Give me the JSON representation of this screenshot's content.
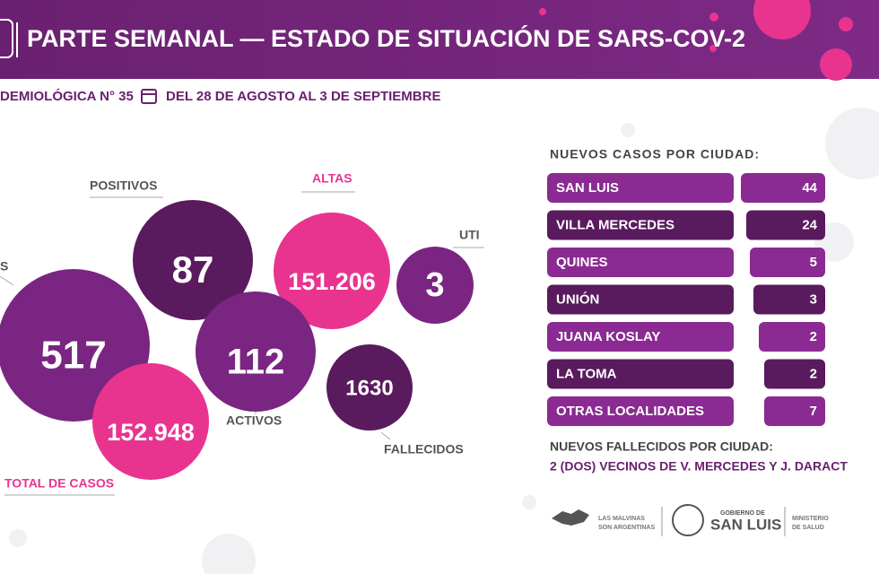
{
  "header": {
    "title": "PARTE SEMANAL — ESTADO DE SITUACIÓN DE SARS-COV-2",
    "report": "DEMIOLÓGICA N° 35",
    "dates": "DEL 28 DE AGOSTO AL 3 DE SEPTIEMBRE"
  },
  "bubbles": [
    {
      "label": "S",
      "value": "517"
    },
    {
      "label": "POSITIVOS",
      "value": "87"
    },
    {
      "label": "ALTAS",
      "value": "151.206"
    },
    {
      "label": "UTI",
      "value": "3"
    },
    {
      "label": "ACTIVOS",
      "value": "112"
    },
    {
      "label": "FALLECIDOS",
      "value": "1630"
    },
    {
      "label": "TOTAL DE CASOS",
      "value": "152.948"
    }
  ],
  "cities": {
    "title": "NUEVOS CASOS POR CIUDAD:",
    "rows": [
      {
        "name": "SAN LUIS",
        "value": 44
      },
      {
        "name": "VILLA MERCEDES",
        "value": 24
      },
      {
        "name": "QUINES",
        "value": 5
      },
      {
        "name": "UNIÓN",
        "value": 3
      },
      {
        "name": "JUANA KOSLAY",
        "value": 2
      },
      {
        "name": "LA TOMA",
        "value": 2
      },
      {
        "name": "OTRAS LOCALIDADES",
        "value": 7
      }
    ]
  },
  "deaths": {
    "title": "NUEVOS FALLECIDOS POR CIUDAD:",
    "text": "2 (DOS) VECINOS DE V. MERCEDES Y J. DARACT"
  },
  "footer": {
    "malvinas": [
      "LAS MALVINAS",
      "SON ARGENTINAS"
    ],
    "gobierno": "GOBIERNO DE",
    "provincia": "SAN LUIS",
    "ministerio": [
      "MINISTERIO",
      "DE SALUD"
    ]
  }
}
